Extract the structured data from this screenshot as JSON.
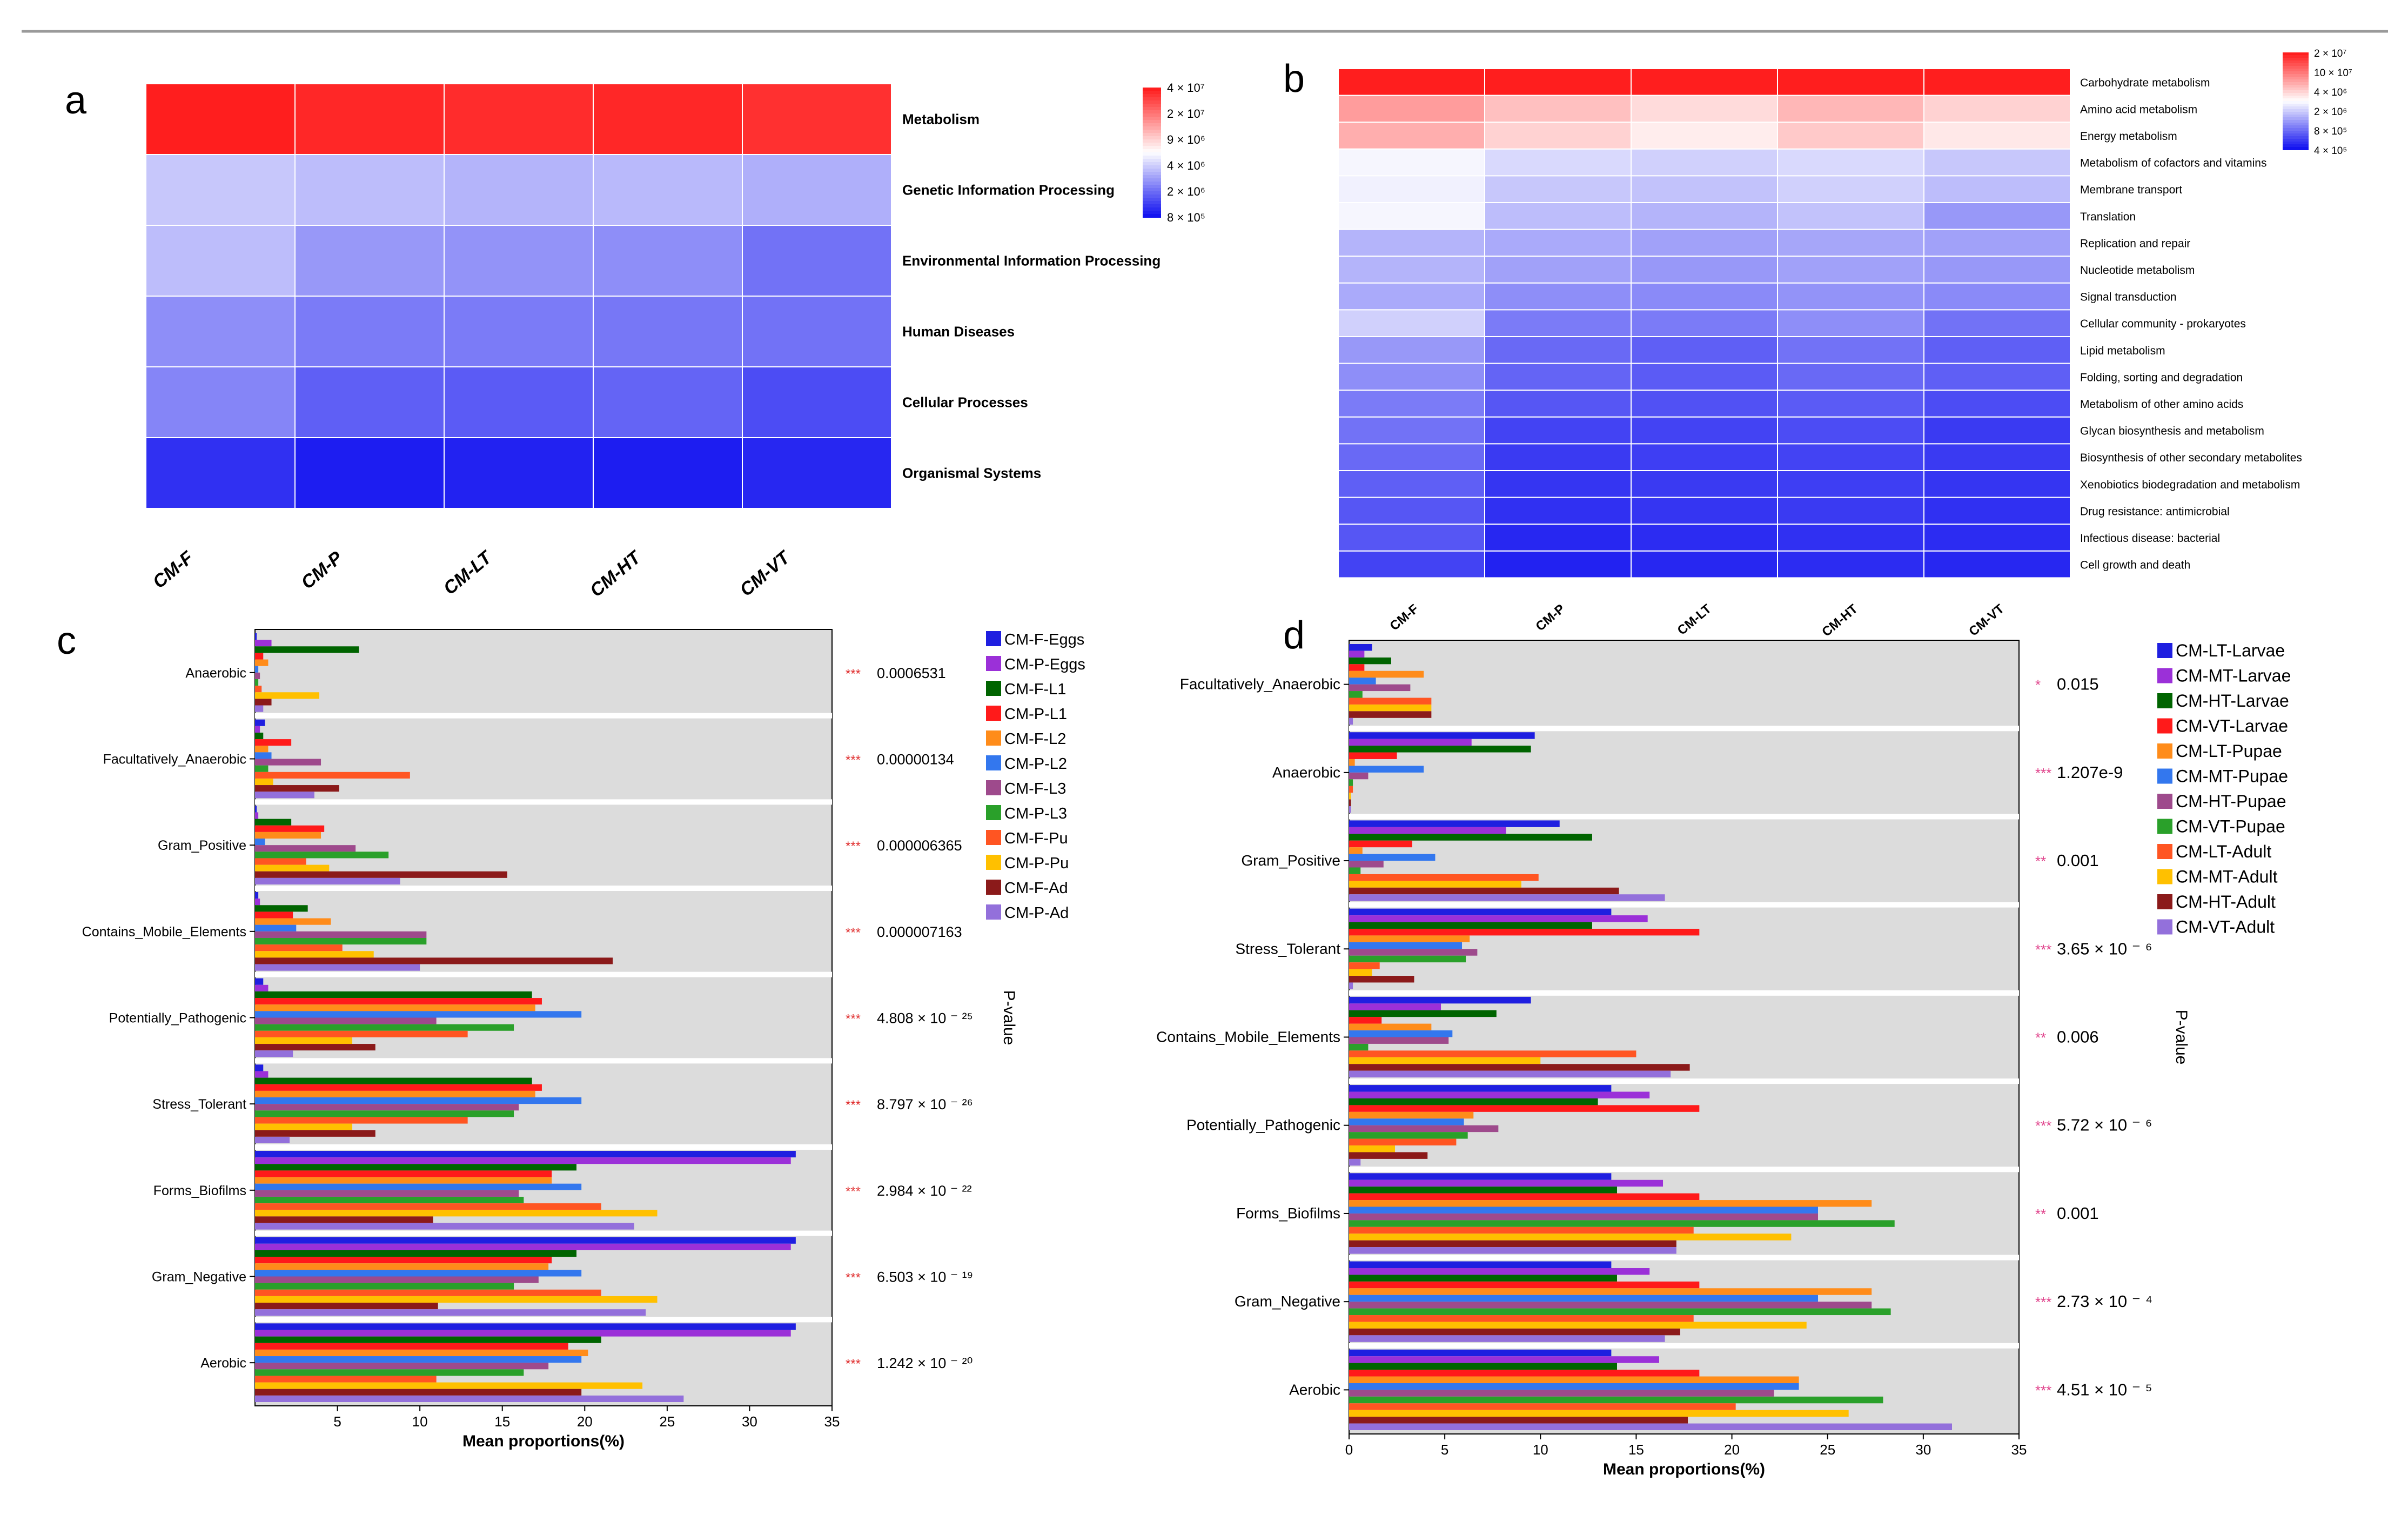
{
  "chart_data": [
    {
      "panel": "a",
      "type": "heatmap",
      "columns": [
        "CM-F",
        "CM-P",
        "CM-LT",
        "CM-HT",
        "CM-VT"
      ],
      "rows": [
        "Metabolism",
        "Genetic Information Processing",
        "Environmental Information Processing",
        "Human Diseases",
        "Cellular Processes",
        "Organismal Systems"
      ],
      "values": [
        [
          1.0,
          0.98,
          0.97,
          0.98,
          0.96
        ],
        [
          0.38,
          0.36,
          0.34,
          0.35,
          0.33
        ],
        [
          0.36,
          0.28,
          0.27,
          0.26,
          0.2
        ],
        [
          0.26,
          0.22,
          0.22,
          0.21,
          0.2
        ],
        [
          0.24,
          0.16,
          0.15,
          0.17,
          0.12
        ],
        [
          0.06,
          0.02,
          0.03,
          0.02,
          0.04
        ]
      ],
      "legend_labels": [
        "4 × 10⁷",
        "2 × 10⁷",
        "9 × 10⁶",
        "4 × 10⁶",
        "2 × 10⁶",
        "8 × 10⁵"
      ]
    },
    {
      "panel": "b",
      "type": "heatmap",
      "columns": [
        "CM-F",
        "CM-P",
        "CM-LT",
        "CM-HT",
        "CM-VT"
      ],
      "rows": [
        "Carbohydrate metabolism",
        "Amino acid metabolism",
        "Energy metabolism",
        "Metabolism of cofactors and vitamins",
        "Membrane transport",
        "Translation",
        "Replication and repair",
        "Nucleotide metabolism",
        "Signal transduction",
        "Cellular community - prokaryotes",
        "Lipid metabolism",
        "Folding, sorting and degradation",
        "Metabolism of other amino acids",
        "Glycan biosynthesis and metabolism",
        "Biosynthesis of other secondary metabolites",
        "Xenobiotics biodegradation and metabolism",
        "Drug resistance: antimicrobial",
        "Infectious disease: bacterial",
        "Cell growth and death"
      ],
      "values": [
        [
          1.0,
          1.0,
          1.0,
          1.0,
          1.0
        ],
        [
          0.72,
          0.64,
          0.58,
          0.66,
          0.6
        ],
        [
          0.68,
          0.6,
          0.54,
          0.62,
          0.55
        ],
        [
          0.48,
          0.42,
          0.4,
          0.42,
          0.38
        ],
        [
          0.47,
          0.38,
          0.37,
          0.4,
          0.36
        ],
        [
          0.48,
          0.36,
          0.34,
          0.37,
          0.28
        ],
        [
          0.34,
          0.32,
          0.3,
          0.31,
          0.3
        ],
        [
          0.34,
          0.3,
          0.28,
          0.3,
          0.28
        ],
        [
          0.32,
          0.26,
          0.25,
          0.27,
          0.25
        ],
        [
          0.4,
          0.22,
          0.22,
          0.26,
          0.2
        ],
        [
          0.28,
          0.18,
          0.16,
          0.2,
          0.16
        ],
        [
          0.26,
          0.17,
          0.15,
          0.18,
          0.16
        ],
        [
          0.22,
          0.14,
          0.13,
          0.15,
          0.12
        ],
        [
          0.2,
          0.1,
          0.1,
          0.12,
          0.08
        ],
        [
          0.18,
          0.08,
          0.09,
          0.1,
          0.08
        ],
        [
          0.16,
          0.07,
          0.08,
          0.09,
          0.07
        ],
        [
          0.14,
          0.06,
          0.07,
          0.08,
          0.06
        ],
        [
          0.14,
          0.04,
          0.05,
          0.06,
          0.05
        ],
        [
          0.1,
          0.03,
          0.04,
          0.05,
          0.04
        ]
      ],
      "legend_labels": [
        "2 × 10⁷",
        "10 × 10⁷",
        "4 × 10⁶",
        "2 × 10⁶",
        "8 × 10⁵",
        "4 × 10⁵"
      ]
    },
    {
      "panel": "c",
      "type": "bar",
      "orientation": "horizontal",
      "xlabel": "Mean proportions(%)",
      "xlim": [
        0,
        35
      ],
      "xticks": [
        5,
        10,
        15,
        20,
        25,
        30,
        35
      ],
      "pvalue_label": "P-value",
      "categories": [
        "Anaerobic",
        "Facultatively_Anaerobic",
        "Gram_Positive",
        "Contains_Mobile_Elements",
        "Potentially_Pathogenic",
        "Stress_Tolerant",
        "Forms_Biofilms",
        "Gram_Negative",
        "Aerobic"
      ],
      "stars": [
        "***",
        "***",
        "***",
        "***",
        "***",
        "***",
        "***",
        "***",
        "***"
      ],
      "pvalues": [
        "0.0006531",
        "0.00000134",
        "0.000006365",
        "0.000007163",
        "4.808 × 10 ⁻ ²⁵",
        "8.797 × 10 ⁻ ²⁶",
        "2.984 × 10 ⁻ ²²",
        "6.503 × 10 ⁻ ¹⁹",
        "1.242 × 10 ⁻ ²⁰"
      ],
      "series": [
        {
          "name": "CM-F-Eggs",
          "color": "#1f1fe0",
          "values": [
            0.1,
            0.6,
            0.1,
            0.2,
            0.5,
            0.5,
            32.8,
            32.8,
            32.8
          ]
        },
        {
          "name": "CM-P-Eggs",
          "color": "#9b30d8",
          "values": [
            1.0,
            0.3,
            0.2,
            0.3,
            0.8,
            0.8,
            32.5,
            32.5,
            32.5
          ]
        },
        {
          "name": "CM-F-L1",
          "color": "#006400",
          "values": [
            6.3,
            0.5,
            2.2,
            3.2,
            16.8,
            16.8,
            19.5,
            19.5,
            21.0
          ]
        },
        {
          "name": "CM-P-L1",
          "color": "#ff1a1a",
          "values": [
            0.5,
            2.2,
            4.2,
            2.3,
            17.4,
            17.4,
            18.0,
            18.0,
            19.0
          ]
        },
        {
          "name": "CM-F-L2",
          "color": "#ff8c1a",
          "values": [
            0.8,
            0.8,
            4.0,
            4.6,
            17.0,
            17.0,
            18.0,
            17.8,
            20.2
          ]
        },
        {
          "name": "CM-P-L2",
          "color": "#3377ee",
          "values": [
            0.2,
            1.0,
            0.6,
            2.5,
            19.8,
            19.8,
            19.8,
            19.8,
            19.8
          ]
        },
        {
          "name": "CM-F-L3",
          "color": "#9e4a8c",
          "values": [
            0.3,
            4.0,
            6.1,
            10.4,
            11.0,
            16.0,
            16.0,
            17.2,
            17.8
          ]
        },
        {
          "name": "CM-P-L3",
          "color": "#2aa02a",
          "values": [
            0.2,
            0.8,
            8.1,
            10.4,
            15.7,
            15.7,
            16.3,
            15.7,
            16.3
          ]
        },
        {
          "name": "CM-F-Pu",
          "color": "#ff5522",
          "values": [
            0.4,
            9.4,
            3.1,
            5.3,
            12.9,
            12.9,
            21.0,
            21.0,
            11.0
          ]
        },
        {
          "name": "CM-P-Pu",
          "color": "#ffc000",
          "values": [
            3.9,
            1.1,
            4.5,
            7.2,
            5.9,
            5.9,
            24.4,
            24.4,
            23.5
          ]
        },
        {
          "name": "CM-F-Ad",
          "color": "#8b1a1a",
          "values": [
            1.0,
            5.1,
            15.3,
            21.7,
            7.3,
            7.3,
            10.8,
            11.1,
            19.8
          ]
        },
        {
          "name": "CM-P-Ad",
          "color": "#9370db",
          "values": [
            0.5,
            3.6,
            8.8,
            10.0,
            2.3,
            2.1,
            23.0,
            23.7,
            26.0
          ]
        }
      ]
    },
    {
      "panel": "d",
      "type": "bar",
      "orientation": "horizontal",
      "xlabel": "Mean proportions(%)",
      "xlim": [
        0,
        35
      ],
      "xticks": [
        0,
        5,
        10,
        15,
        20,
        25,
        30,
        35
      ],
      "pvalue_label": "P-value",
      "categories": [
        "Facultatively_Anaerobic",
        "Anaerobic",
        "Gram_Positive",
        "Stress_Tolerant",
        "Contains_Mobile_Elements",
        "Potentially_Pathogenic",
        "Forms_Biofilms",
        "Gram_Negative",
        "Aerobic"
      ],
      "stars": [
        "*",
        "***",
        "**",
        "***",
        "**",
        "***",
        "**",
        "***",
        "***"
      ],
      "pvalues": [
        "0.015",
        "1.207e-9",
        "0.001",
        "3.65 × 10 ⁻ ⁶",
        "0.006",
        "5.72 × 10 ⁻ ⁶",
        "0.001",
        "2.73 × 10 ⁻ ⁴",
        "4.51 × 10 ⁻ ⁵"
      ],
      "series": [
        {
          "name": "CM-LT-Larvae",
          "color": "#1f1fe0",
          "values": [
            1.2,
            9.7,
            11.0,
            13.7,
            9.5,
            13.7,
            13.7,
            13.7,
            13.7
          ]
        },
        {
          "name": "CM-MT-Larvae",
          "color": "#9b30d8",
          "values": [
            0.8,
            6.4,
            8.2,
            15.6,
            4.8,
            15.7,
            16.4,
            15.7,
            16.2
          ]
        },
        {
          "name": "CM-HT-Larvae",
          "color": "#006400",
          "values": [
            2.2,
            9.5,
            12.7,
            12.7,
            7.7,
            13.0,
            14.0,
            14.0,
            14.0
          ]
        },
        {
          "name": "CM-VT-Larvae",
          "color": "#ff1a1a",
          "values": [
            0.8,
            2.5,
            3.3,
            18.3,
            1.7,
            18.3,
            18.3,
            18.3,
            18.3
          ]
        },
        {
          "name": "CM-LT-Pupae",
          "color": "#ff8c1a",
          "values": [
            3.9,
            0.3,
            0.7,
            6.3,
            4.3,
            6.5,
            27.3,
            27.3,
            23.5
          ]
        },
        {
          "name": "CM-MT-Pupae",
          "color": "#3377ee",
          "values": [
            1.4,
            3.9,
            4.5,
            5.9,
            5.4,
            6.0,
            24.5,
            24.5,
            23.5
          ]
        },
        {
          "name": "CM-HT-Pupae",
          "color": "#9e4a8c",
          "values": [
            3.2,
            1.0,
            1.8,
            6.7,
            5.2,
            7.8,
            24.5,
            27.3,
            22.2
          ]
        },
        {
          "name": "CM-VT-Pupae",
          "color": "#2aa02a",
          "values": [
            0.7,
            0.2,
            0.6,
            6.1,
            1.0,
            6.2,
            28.5,
            28.3,
            27.9
          ]
        },
        {
          "name": "CM-LT-Adult",
          "color": "#ff5522",
          "values": [
            4.3,
            0.2,
            9.9,
            1.6,
            15.0,
            5.6,
            18.0,
            18.0,
            20.2
          ]
        },
        {
          "name": "CM-MT-Adult",
          "color": "#ffc000",
          "values": [
            4.3,
            0.1,
            9.0,
            1.2,
            10.0,
            2.4,
            23.1,
            23.9,
            26.1
          ]
        },
        {
          "name": "CM-HT-Adult",
          "color": "#8b1a1a",
          "values": [
            4.3,
            0.1,
            14.1,
            3.4,
            17.8,
            4.1,
            17.1,
            17.3,
            17.7
          ]
        },
        {
          "name": "CM-VT-Adult",
          "color": "#9370db",
          "values": [
            0.2,
            0.1,
            16.5,
            0.2,
            16.8,
            0.6,
            17.1,
            16.5,
            31.5
          ]
        }
      ]
    }
  ],
  "panel_labels": {
    "a": "a",
    "b": "b",
    "c": "c",
    "d": "d"
  }
}
